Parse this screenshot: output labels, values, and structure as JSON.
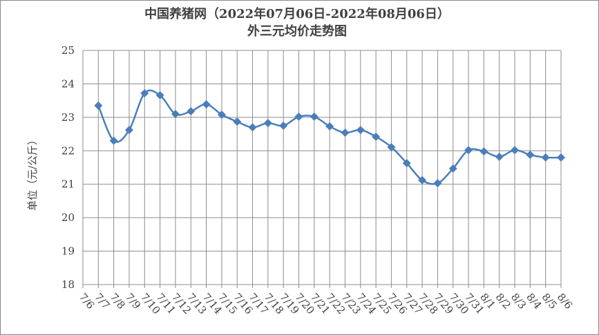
{
  "chart_data": {
    "type": "line",
    "title": [
      "中国养猪网（2022年07月06日-2022年08月06日）",
      "外三元均价走势图"
    ],
    "y_label": "单位（元/公斤）",
    "categories": [
      "7/6",
      "7/7",
      "7/8",
      "7/9",
      "7/10",
      "7/11",
      "7/12",
      "7/13",
      "7/14",
      "7/15",
      "7/16",
      "7/17",
      "7/18",
      "7/19",
      "7/20",
      "7/21",
      "7/22",
      "7/23",
      "7/24",
      "7/25",
      "7/26",
      "7/27",
      "7/28",
      "7/29",
      "7/30",
      "7/31",
      "8/1",
      "8/2",
      "8/3",
      "8/4",
      "8/5",
      "8/6"
    ],
    "series": [
      {
        "color": "#4a7ebb",
        "values": [
          null,
          23.35,
          22.3,
          22.62,
          23.72,
          23.66,
          23.1,
          23.18,
          23.39,
          23.08,
          22.87,
          22.7,
          22.83,
          22.75,
          23.02,
          23.02,
          22.73,
          22.54,
          22.62,
          22.42,
          22.11,
          21.63,
          21.12,
          21.03,
          21.47,
          22.02,
          21.98,
          21.82,
          22.02,
          21.88,
          21.8,
          21.8
        ]
      }
    ],
    "ylim": [
      18,
      25
    ],
    "yticks": [
      18,
      19,
      20,
      21,
      22,
      23,
      24,
      25
    ],
    "grid": true
  }
}
